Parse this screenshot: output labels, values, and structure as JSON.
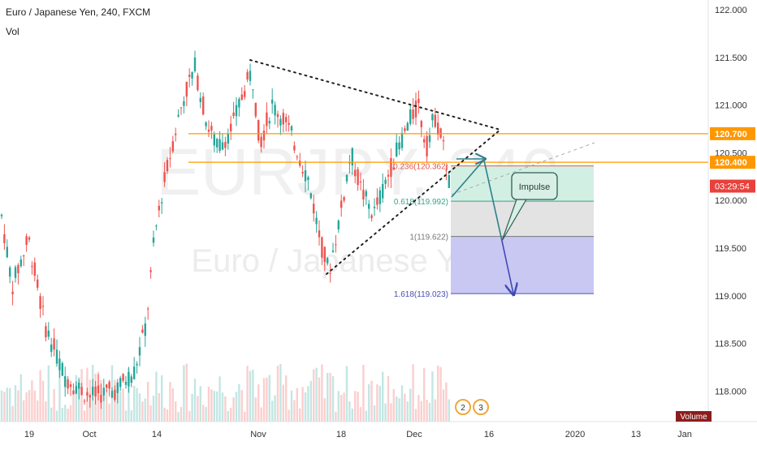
{
  "header": {
    "symbol_line": "Euro / Japanese Yen, 240, FXCM",
    "vol_label": "Vol"
  },
  "watermark": {
    "big": "EURJPY, 240",
    "small": "Euro / Japanese Yen"
  },
  "colors": {
    "bull": "#26a69a",
    "bear": "#ef5350",
    "orange": "#ff9800",
    "fib_green_fill": "#d2efe4",
    "fib_grey_fill": "#e3e3e3",
    "fib_blue_fill": "#c9c8f3",
    "arrow": "#2e7f8a",
    "arrow_blue": "#3f49b5",
    "price_badge_red": "#e8413c"
  },
  "chart_data": {
    "type": "candlestick",
    "symbol": "Euro / Japanese Yen",
    "timeframe": "240",
    "source": "FXCM",
    "ylim": [
      117.6,
      122.05
    ],
    "y_ticks": [
      118.0,
      118.5,
      119.0,
      119.5,
      120.0,
      120.5,
      121.0,
      121.5,
      122.0
    ],
    "y_tick_labels": [
      "118.000",
      "118.500",
      "119.000",
      "119.500",
      "120.000",
      "120.500",
      "121.000",
      "121.500",
      "122.000"
    ],
    "x_tick_labels": [
      "19",
      "Oct",
      "14",
      "Nov",
      "18",
      "Dec",
      "16",
      "2020",
      "13",
      "Jan"
    ],
    "horizontal_levels": [
      {
        "price": 120.7,
        "label": "120.700",
        "color": "#ff9800"
      },
      {
        "price": 120.4,
        "label": "120.400",
        "color": "#ff9800"
      }
    ],
    "current_price": {
      "label": "03:29:54",
      "price": 120.15
    },
    "triangle": {
      "upper": [
        [
          "Oct 31",
          121.48
        ],
        [
          "Dec 17",
          120.75
        ]
      ],
      "lower": [
        [
          "Nov 14",
          119.23
        ],
        [
          "Dec 17",
          120.75
        ]
      ]
    },
    "fibonacci": [
      {
        "ratio": "0.236",
        "price": 120.362,
        "label": "0.236(120.362)"
      },
      {
        "ratio": "0.618",
        "price": 119.992,
        "label": "0.618(119.992)"
      },
      {
        "ratio": "1",
        "price": 119.622,
        "label": "1(119.622)"
      },
      {
        "ratio": "1.618",
        "price": 119.023,
        "label": "1.618(119.023)"
      }
    ],
    "annotation": "Impulse",
    "volume_label": "Volume",
    "event_badges": [
      "2",
      "3"
    ]
  }
}
